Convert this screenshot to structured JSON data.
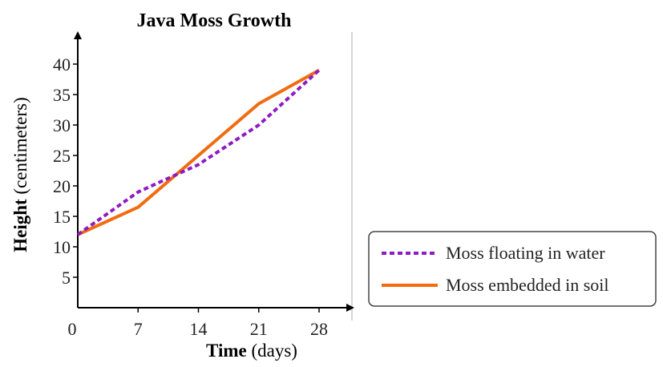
{
  "chart_data": {
    "type": "line",
    "title": "Java Moss Growth",
    "xlabel": {
      "bold": "Time",
      "rest": " (days)"
    },
    "ylabel": {
      "bold": "Height",
      "rest": " (centimeters)"
    },
    "x": [
      0,
      7,
      14,
      21,
      28
    ],
    "xticks": [
      "0",
      "7",
      "14",
      "21",
      "28"
    ],
    "yticks": [
      "5",
      "10",
      "15",
      "20",
      "25",
      "30",
      "35",
      "40"
    ],
    "xlim": [
      0,
      28
    ],
    "ylim": [
      0,
      40
    ],
    "grid": false,
    "legend_position": "right",
    "series": [
      {
        "name": "Moss floating in water",
        "style": "dashed",
        "color": "#8e1cc2",
        "values": [
          12,
          19,
          23.5,
          30,
          39
        ]
      },
      {
        "name": "Moss embedded in soil",
        "style": "solid",
        "color": "#f26c0f",
        "values": [
          12,
          16.5,
          25,
          33.5,
          39
        ]
      }
    ]
  }
}
